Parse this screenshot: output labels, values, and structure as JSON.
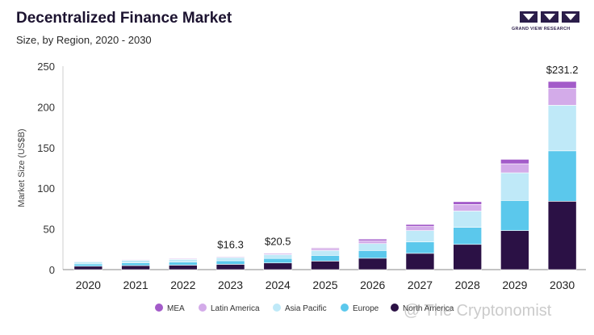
{
  "header": {
    "title": "Decentralized Finance Market",
    "subtitle": "Size, by Region, 2020 - 2030"
  },
  "logo": {
    "caption": "GRAND VIEW RESEARCH"
  },
  "watermark": "@ The Cryptonomist",
  "chart_data": {
    "type": "bar",
    "stacked": true,
    "title": "Decentralized Finance Market",
    "subtitle": "Size, by Region, 2020 - 2030",
    "xlabel": "",
    "ylabel": "Market Size (US$B)",
    "ylim": [
      0,
      250
    ],
    "yticks": [
      0,
      50,
      100,
      150,
      200,
      250
    ],
    "grid": false,
    "legend_position": "bottom",
    "categories": [
      "2020",
      "2021",
      "2022",
      "2023",
      "2024",
      "2025",
      "2026",
      "2027",
      "2028",
      "2029",
      "2030"
    ],
    "series": [
      {
        "name": "North America",
        "color": "#2b1145",
        "values": [
          4.2,
          5.0,
          5.5,
          6.5,
          8.2,
          10.5,
          14.0,
          20.0,
          31.0,
          48.0,
          84.0
        ]
      },
      {
        "name": "Europe",
        "color": "#5bc8ec",
        "values": [
          2.8,
          3.4,
          3.7,
          4.4,
          5.5,
          7.0,
          9.5,
          14.0,
          21.0,
          37.0,
          62.0
        ]
      },
      {
        "name": "Asia Pacific",
        "color": "#bfe9f8",
        "values": [
          2.6,
          3.1,
          3.4,
          3.9,
          4.8,
          6.0,
          8.5,
          14.0,
          20.0,
          34.0,
          56.0
        ]
      },
      {
        "name": "Latin America",
        "color": "#d3abe9",
        "values": [
          0.8,
          0.9,
          1.0,
          1.1,
          1.5,
          2.2,
          3.5,
          5.0,
          8.0,
          11.0,
          21.0
        ]
      },
      {
        "name": "MEA",
        "color": "#a35bc9",
        "values": [
          0.3,
          0.3,
          0.3,
          0.4,
          0.5,
          1.0,
          2.0,
          2.5,
          3.5,
          5.5,
          8.2
        ]
      }
    ],
    "total_labels": [
      {
        "category": "2023",
        "text": "$16.3"
      },
      {
        "category": "2024",
        "text": "$20.5"
      },
      {
        "category": "2030",
        "text": "$231.2"
      }
    ],
    "legend_order": [
      "MEA",
      "Latin America",
      "Asia Pacific",
      "Europe",
      "North America"
    ]
  }
}
